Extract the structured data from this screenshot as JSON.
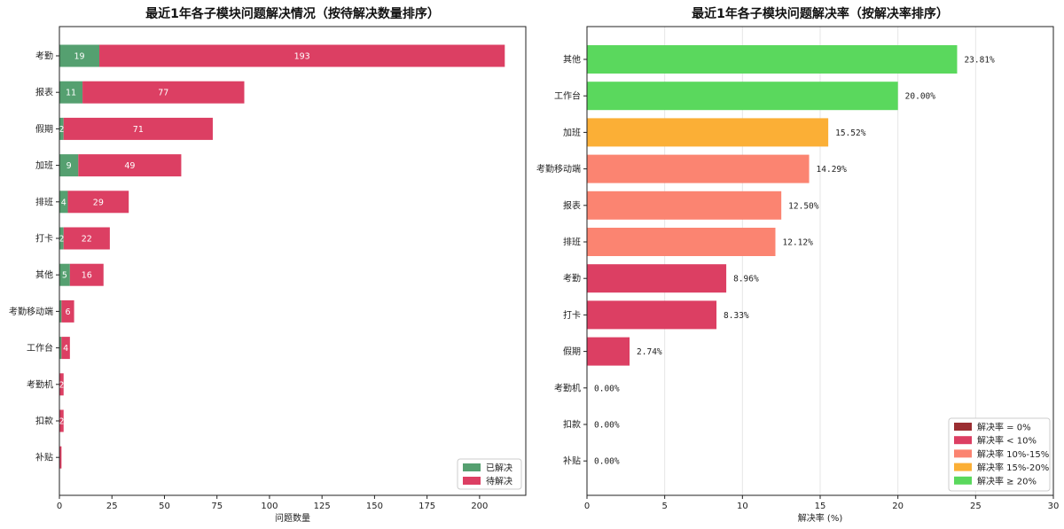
{
  "colors": {
    "resolved": "#55a070",
    "pending": "#dc3f63",
    "rate_zero": "#9b2e32",
    "rate_lt10": "#dc3f63",
    "rate_10_15": "#fb8471",
    "rate_15_20": "#fbaf36",
    "rate_ge20": "#5ad85d",
    "grid": "#e6e6e6"
  },
  "chart_data": [
    {
      "type": "bar",
      "orientation": "horizontal",
      "stacked": true,
      "title": "最近1年各子模块问题解决情况（按待解决数量排序）",
      "xlabel": "问题数量",
      "ylabel": "",
      "xlim": [
        0,
        222
      ],
      "xticks": [
        0,
        25,
        50,
        75,
        100,
        125,
        150,
        175,
        200
      ],
      "legend_position": "lower-right",
      "categories": [
        "考勤",
        "报表",
        "假期",
        "加班",
        "排班",
        "打卡",
        "其他",
        "考勤移动端",
        "工作台",
        "考勤机",
        "扣款",
        "补贴"
      ],
      "series": [
        {
          "name": "已解决",
          "values": [
            19,
            11,
            2,
            9,
            4,
            2,
            5,
            1,
            1,
            0,
            0,
            0
          ]
        },
        {
          "name": "待解决",
          "values": [
            193,
            77,
            71,
            49,
            29,
            22,
            16,
            6,
            4,
            2,
            2,
            1
          ]
        }
      ],
      "segment_labels": [
        [
          "19",
          "193"
        ],
        [
          "11",
          "77"
        ],
        [
          "2",
          "71"
        ],
        [
          "9",
          "49"
        ],
        [
          "4",
          "29"
        ],
        [
          "2",
          "22"
        ],
        [
          "5",
          "16"
        ],
        [
          "",
          "6"
        ],
        [
          "",
          "4"
        ],
        [
          "",
          "2"
        ],
        [
          "",
          "2"
        ],
        [
          "",
          ""
        ]
      ]
    },
    {
      "type": "bar",
      "orientation": "horizontal",
      "title": "最近1年各子模块问题解决率（按解决率排序）",
      "xlabel": "解决率 (%)",
      "ylabel": "",
      "xlim": [
        0,
        30
      ],
      "xticks": [
        0,
        5,
        10,
        15,
        20,
        25,
        30
      ],
      "grid": "vertical",
      "legend_position": "lower-right",
      "categories": [
        "其他",
        "工作台",
        "加班",
        "考勤移动端",
        "报表",
        "排班",
        "考勤",
        "打卡",
        "假期",
        "考勤机",
        "扣款",
        "补贴"
      ],
      "values": [
        23.81,
        20.0,
        15.52,
        14.29,
        12.5,
        12.12,
        8.96,
        8.33,
        2.74,
        0.0,
        0.0,
        0.0
      ],
      "value_labels": [
        "23.81%",
        "20.00%",
        "15.52%",
        "14.29%",
        "12.50%",
        "12.12%",
        "8.96%",
        "8.33%",
        "2.74%",
        "0.00%",
        "0.00%",
        "0.00%"
      ],
      "legend": [
        {
          "label": "解决率 = 0%",
          "color_key": "rate_zero"
        },
        {
          "label": "解决率 < 10%",
          "color_key": "rate_lt10"
        },
        {
          "label": "解决率 10%-15%",
          "color_key": "rate_10_15"
        },
        {
          "label": "解决率 15%-20%",
          "color_key": "rate_15_20"
        },
        {
          "label": "解决率 ≥ 20%",
          "color_key": "rate_ge20"
        }
      ]
    }
  ]
}
